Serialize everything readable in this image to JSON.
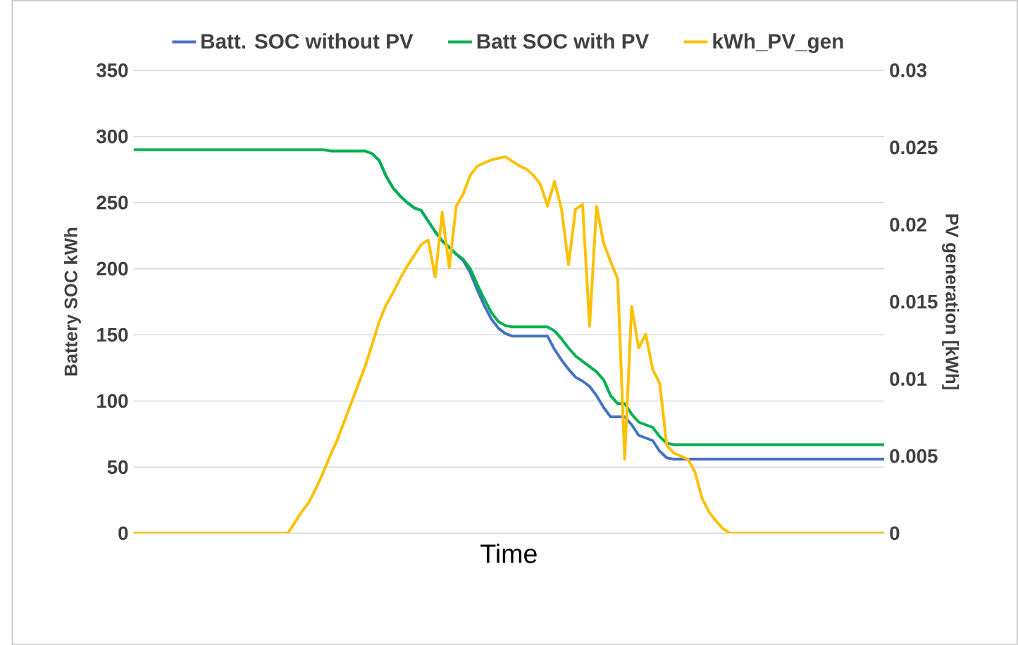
{
  "chart_data": {
    "type": "line",
    "xlabel": "Time",
    "ylabel": "Battery SOC kWh",
    "y2label": "PV generation [kWh]",
    "categories": [
      null,
      null,
      null,
      null,
      null,
      null,
      null,
      null,
      null,
      null,
      null,
      null,
      null,
      null,
      null,
      null,
      null,
      null,
      null,
      null,
      null,
      null,
      null,
      null,
      null,
      null,
      null,
      null,
      null,
      null,
      null,
      null,
      null,
      null,
      null,
      null,
      null,
      null,
      null,
      null,
      null,
      null,
      null,
      null,
      null,
      null,
      null,
      null,
      null,
      null,
      null,
      null,
      null,
      null,
      null,
      null,
      null,
      null,
      null,
      null,
      null,
      null,
      null,
      null,
      null,
      null,
      null,
      null,
      null,
      null,
      null,
      null,
      null,
      null,
      null,
      null,
      null,
      null,
      null,
      null,
      null,
      null,
      null,
      null,
      null,
      null,
      null,
      null,
      null,
      null,
      null,
      null,
      null,
      null,
      null,
      null,
      null,
      null,
      null,
      null,
      null,
      null,
      null,
      null,
      null,
      null,
      null,
      null
    ],
    "series": [
      {
        "name": "Batt. SOC without PV",
        "color": "#4472c4",
        "values": [
          null,
          null,
          null,
          null,
          null,
          null,
          null,
          null,
          null,
          null,
          null,
          null,
          null,
          null,
          null,
          null,
          null,
          null,
          null,
          null,
          null,
          null,
          null,
          null,
          null,
          null,
          null,
          null,
          null,
          null,
          null,
          null,
          null,
          null,
          287,
          282,
          270,
          261,
          255,
          250,
          246,
          244,
          236,
          228,
          221,
          216,
          211,
          206,
          197,
          184,
          172,
          162,
          155,
          151,
          149,
          149,
          149,
          149,
          149,
          149,
          139,
          131,
          124,
          118,
          115,
          111,
          104,
          95,
          88,
          88,
          88,
          82,
          74,
          72,
          70,
          62,
          57,
          56,
          56,
          56,
          56,
          56,
          56,
          56,
          56,
          56,
          56,
          56,
          56,
          56,
          56,
          56,
          56,
          56,
          56,
          56,
          56,
          56,
          56,
          56,
          56,
          56,
          56,
          56,
          56,
          56,
          56,
          56
        ]
      },
      {
        "name": "Batt SOC with PV",
        "color": "#00b050",
        "values": [
          290,
          290,
          290,
          290,
          290,
          290,
          290,
          290,
          290,
          290,
          290,
          290,
          290,
          290,
          290,
          290,
          290,
          290,
          290,
          290,
          290,
          290,
          290,
          290,
          290,
          290,
          290,
          290,
          289,
          289,
          289,
          289,
          289,
          289,
          287,
          282,
          270,
          261,
          255,
          250,
          246,
          244,
          236,
          228,
          221,
          216,
          211,
          207,
          200,
          188,
          177,
          167,
          160,
          157,
          156,
          156,
          156,
          156,
          156,
          156,
          153,
          147,
          140,
          134,
          130,
          126,
          122,
          116,
          104,
          98,
          98,
          90,
          84,
          82,
          80,
          73,
          68,
          67,
          67,
          67,
          67,
          67,
          67,
          67,
          67,
          67,
          67,
          67,
          67,
          67,
          67,
          67,
          67,
          67,
          67,
          67,
          67,
          67,
          67,
          67,
          67,
          67,
          67,
          67,
          67,
          67,
          67,
          67
        ]
      },
      {
        "name": "kWh_PV_gen",
        "color": "#ffc000",
        "axis": "y2",
        "values": [
          0,
          0,
          0,
          0,
          0,
          0,
          0,
          0,
          0,
          0,
          0,
          0,
          0,
          0,
          0,
          0,
          0,
          0,
          0,
          0,
          0,
          0,
          0,
          0.0007,
          0.0014,
          0.002,
          0.0029,
          0.0039,
          0.005,
          0.006,
          0.0072,
          0.0084,
          0.0096,
          0.0108,
          0.0122,
          0.0137,
          0.0148,
          0.0156,
          0.0165,
          0.0173,
          0.018,
          0.0187,
          0.019,
          0.0166,
          0.0208,
          0.0172,
          0.0212,
          0.022,
          0.0232,
          0.0238,
          0.024,
          0.0242,
          0.0243,
          0.0244,
          0.0241,
          0.0238,
          0.0236,
          0.0232,
          0.0226,
          0.0212,
          0.0228,
          0.021,
          0.0174,
          0.021,
          0.0213,
          0.0134,
          0.0212,
          0.0188,
          0.0176,
          0.0165,
          0.0048,
          0.0147,
          0.012,
          0.0129,
          0.0106,
          0.0097,
          0.0057,
          0.0052,
          0.005,
          0.0048,
          0.004,
          0.0023,
          0.0014,
          0.0008,
          0.0003,
          0,
          0,
          0,
          0,
          0,
          0,
          0,
          0,
          0,
          0,
          0,
          0,
          0,
          0,
          0,
          0,
          0,
          0,
          0,
          0,
          0,
          0,
          0
        ]
      }
    ],
    "ylim": [
      0,
      350
    ],
    "yticks": [
      0,
      50,
      100,
      150,
      200,
      250,
      300,
      350
    ],
    "y2lim": [
      0,
      0.03
    ],
    "y2ticks": [
      0,
      0.005,
      0.01,
      0.015,
      0.02,
      0.025,
      0.03
    ],
    "grid": "y",
    "legend": "top"
  }
}
